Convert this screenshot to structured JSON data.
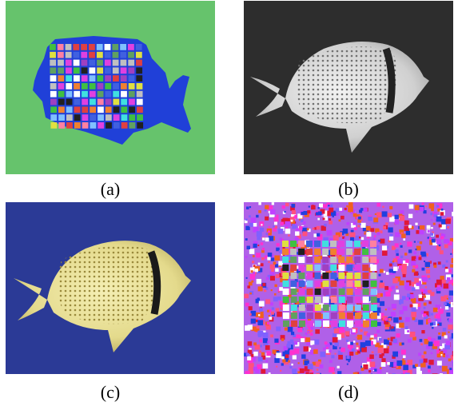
{
  "panels": [
    {
      "id": "a",
      "caption": "(a)",
      "content": "segmentation"
    },
    {
      "id": "b",
      "caption": "(b)",
      "content": "grayscale"
    },
    {
      "id": "c",
      "caption": "(c)",
      "content": "color"
    },
    {
      "id": "d",
      "caption": "(d)",
      "content": "noisy"
    }
  ],
  "colors": {
    "seg_background": "#66c36c",
    "seg_fish": "#2040d8",
    "gray_background": "#2d2d2d",
    "color_background": "#2b3a96",
    "fish_yellow": "#e8e09a"
  }
}
